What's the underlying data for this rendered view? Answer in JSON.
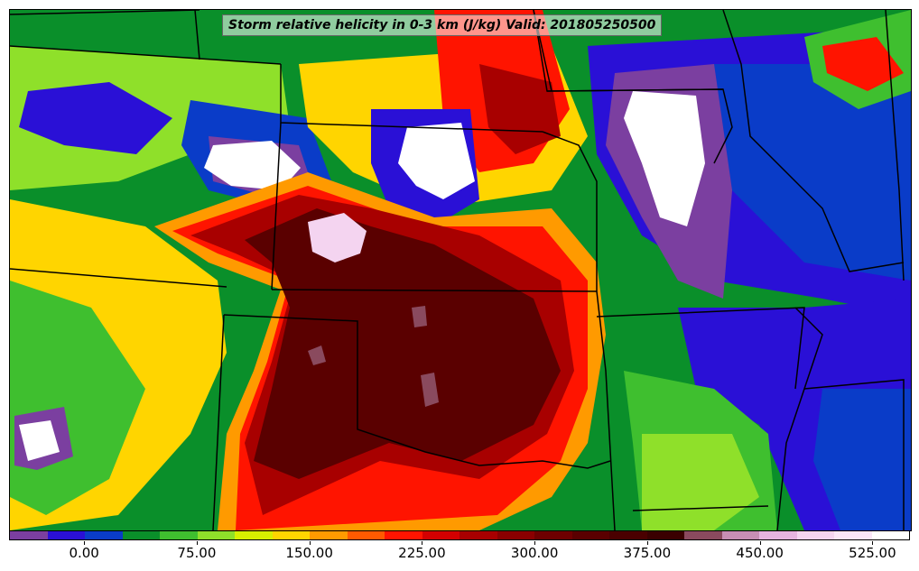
{
  "title": "Storm relative helicity in 0-3 km (J/kg) Valid: 201805250500",
  "colorbar": {
    "colors": [
      "#7b3fa0",
      "#2a10d6",
      "#0a3cc8",
      "#0a8f2a",
      "#3fbf2f",
      "#8fe02a",
      "#d8ef00",
      "#ffd500",
      "#ff9a00",
      "#ff5a00",
      "#ff1400",
      "#d40000",
      "#a80000",
      "#8a0000",
      "#6e0000",
      "#5a0000",
      "#4a0000",
      "#3a0000",
      "#8a4a5e",
      "#c88fb4",
      "#e6b4e0",
      "#f4d4f0",
      "#fae6f8",
      "#ffffff"
    ],
    "tick_labels": [
      "0.00",
      "75.00",
      "150.00",
      "225.00",
      "300.00",
      "375.00",
      "450.00",
      "525.00"
    ],
    "tick_segment_index": [
      2,
      5,
      8,
      11,
      14,
      17,
      20,
      23
    ]
  },
  "colors": {
    "white": "#ffffff",
    "purple": "#7b3fa0",
    "blue": "#2a10d6",
    "darkblue": "#0a3cc8",
    "green": "#0a8f2a",
    "lightgreen": "#3fbf2f",
    "lime": "#8fe02a",
    "yellow": "#ffd500",
    "orange": "#ff9a00",
    "red": "#ff1400",
    "darkred": "#a80000",
    "maroon": "#5a0000",
    "mauve": "#8a4a5e",
    "pink": "#f4d4f0"
  }
}
